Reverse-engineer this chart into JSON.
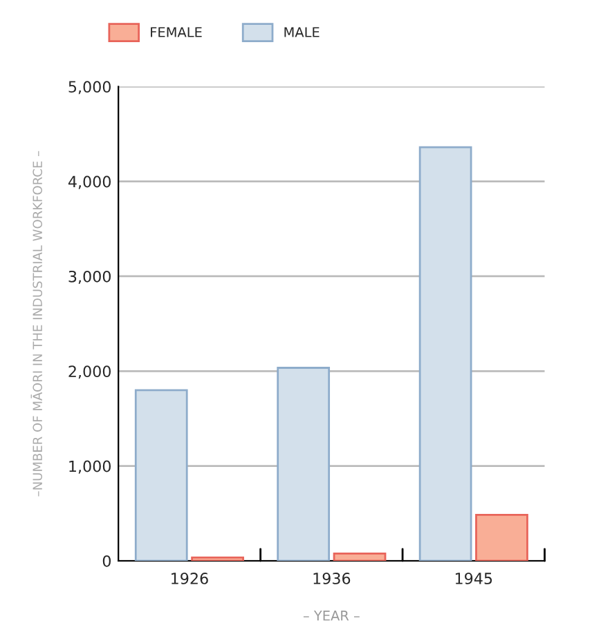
{
  "chart_data": {
    "type": "bar",
    "xlabel": "– YEAR –",
    "ylabel": "–NUMBER OF MĀORI IN THE INDUSTRIAL WORKFORCE –",
    "categories": [
      "1926",
      "1936",
      "1945"
    ],
    "series": [
      {
        "name": "MALE",
        "color": "#d3e0eb",
        "values": [
          1800,
          2035,
          4360
        ]
      },
      {
        "name": "FEMALE",
        "color": "#f9ae96",
        "values": [
          35,
          78,
          485
        ]
      }
    ],
    "ylim": [
      0,
      5000
    ],
    "yticks": [
      {
        "value": 0,
        "label": "0"
      },
      {
        "value": 1000,
        "label": "1,000"
      },
      {
        "value": 2000,
        "label": "2,000"
      },
      {
        "value": 3000,
        "label": "3,000"
      },
      {
        "value": 4000,
        "label": "4,000"
      },
      {
        "value": 5000,
        "label": "5,000"
      }
    ],
    "grid": "y",
    "legend": "top left"
  }
}
